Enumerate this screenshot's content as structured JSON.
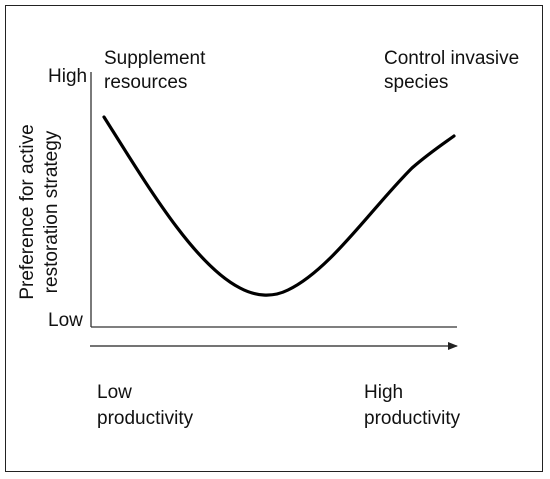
{
  "diagram": {
    "y_axis": {
      "label_line1": "Preference for active",
      "label_line2": "restoration strategy",
      "high_label": "High",
      "low_label": "Low"
    },
    "x_axis": {
      "low_line1": "Low",
      "low_line2": "productivity",
      "high_line1": "High",
      "high_line2": "productivity"
    },
    "annotations": {
      "left_line1": "Supplement",
      "left_line2": "resources",
      "right_line1": "Control invasive",
      "right_line2": "species"
    },
    "curve": {
      "shape": "U-shaped",
      "description_colors": {
        "curve": "#000000",
        "axes": "#333333"
      }
    }
  }
}
